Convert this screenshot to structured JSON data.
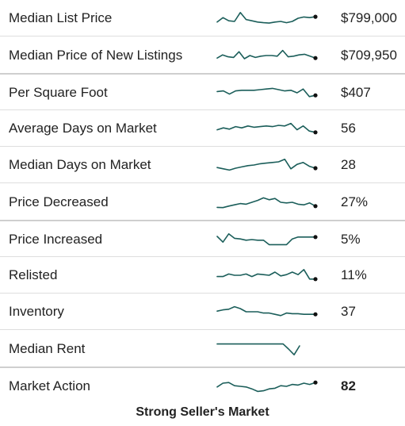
{
  "colors": {
    "line": "#1b5e5a",
    "dot": "#111111",
    "divider": "#dedede"
  },
  "rows": [
    {
      "label": "Median List Price",
      "value": "$799,000",
      "bold": false,
      "spark": [
        0.2,
        0.55,
        0.3,
        0.25,
        0.95,
        0.4,
        0.3,
        0.2,
        0.15,
        0.12,
        0.2,
        0.25,
        0.15,
        0.25,
        0.5,
        0.6,
        0.55,
        0.62
      ],
      "dot": true
    },
    {
      "label": "Median Price of New Listings",
      "value": "$709,950",
      "bold": false,
      "spark": [
        0.3,
        0.55,
        0.4,
        0.35,
        0.8,
        0.25,
        0.5,
        0.35,
        0.45,
        0.5,
        0.5,
        0.45,
        0.9,
        0.4,
        0.45,
        0.55,
        0.6,
        0.45,
        0.3
      ],
      "dot": true
    },
    {
      "label": "Per Square Foot",
      "value": "$407",
      "bold": false,
      "spark": [
        0.6,
        0.65,
        0.4,
        0.65,
        0.7,
        0.7,
        0.7,
        0.75,
        0.8,
        0.85,
        0.75,
        0.65,
        0.7,
        0.5,
        0.8,
        0.2,
        0.3
      ],
      "dot": true
    },
    {
      "label": "Average Days on Market",
      "value": "56",
      "bold": false,
      "spark": [
        0.4,
        0.55,
        0.45,
        0.65,
        0.55,
        0.7,
        0.6,
        0.65,
        0.7,
        0.65,
        0.75,
        0.7,
        0.9,
        0.4,
        0.7,
        0.3,
        0.2
      ],
      "dot": true
    },
    {
      "label": "Median Days on Market",
      "value": "28",
      "bold": false,
      "spark": [
        0.3,
        0.2,
        0.1,
        0.25,
        0.35,
        0.45,
        0.5,
        0.6,
        0.65,
        0.7,
        0.75,
        0.95,
        0.2,
        0.55,
        0.7,
        0.4,
        0.25
      ],
      "dot": true
    },
    {
      "label": "Price Decreased",
      "value": "27%",
      "bold": false,
      "spark": [
        0.1,
        0.08,
        0.2,
        0.3,
        0.4,
        0.35,
        0.5,
        0.65,
        0.85,
        0.7,
        0.8,
        0.5,
        0.45,
        0.5,
        0.35,
        0.3,
        0.45,
        0.2
      ],
      "dot": true
    },
    {
      "label": "Price Increased",
      "value": "5%",
      "bold": false,
      "spark": [
        0.75,
        0.3,
        0.95,
        0.6,
        0.55,
        0.45,
        0.5,
        0.45,
        0.45,
        0.1,
        0.1,
        0.1,
        0.1,
        0.55,
        0.7,
        0.7,
        0.7,
        0.7
      ],
      "dot": true
    },
    {
      "label": "Relisted",
      "value": "11%",
      "bold": false,
      "spark": [
        0.4,
        0.4,
        0.6,
        0.5,
        0.5,
        0.6,
        0.4,
        0.6,
        0.55,
        0.5,
        0.75,
        0.45,
        0.55,
        0.75,
        0.55,
        0.95,
        0.2,
        0.2
      ],
      "dot": true
    },
    {
      "label": "Inventory",
      "value": "37",
      "bold": false,
      "spark": [
        0.55,
        0.65,
        0.7,
        0.9,
        0.75,
        0.5,
        0.5,
        0.5,
        0.4,
        0.4,
        0.3,
        0.2,
        0.4,
        0.35,
        0.35,
        0.3,
        0.3,
        0.3
      ],
      "dot": true
    },
    {
      "label": "Median Rent",
      "value": "",
      "bold": false,
      "spark": [
        0.9,
        0.9,
        0.9,
        0.9,
        0.9,
        0.9,
        0.9,
        0.9,
        0.9,
        0.9,
        0.9,
        0.9,
        0.9,
        0.5,
        0.05,
        0.75
      ],
      "dot": false
    },
    {
      "label": "Market Action",
      "value": "82",
      "bold": true,
      "spark": [
        0.45,
        0.75,
        0.8,
        0.55,
        0.5,
        0.45,
        0.3,
        0.1,
        0.15,
        0.3,
        0.35,
        0.55,
        0.5,
        0.65,
        0.6,
        0.75,
        0.65,
        0.8
      ],
      "dot": true
    }
  ],
  "summary": "Strong Seller's Market"
}
